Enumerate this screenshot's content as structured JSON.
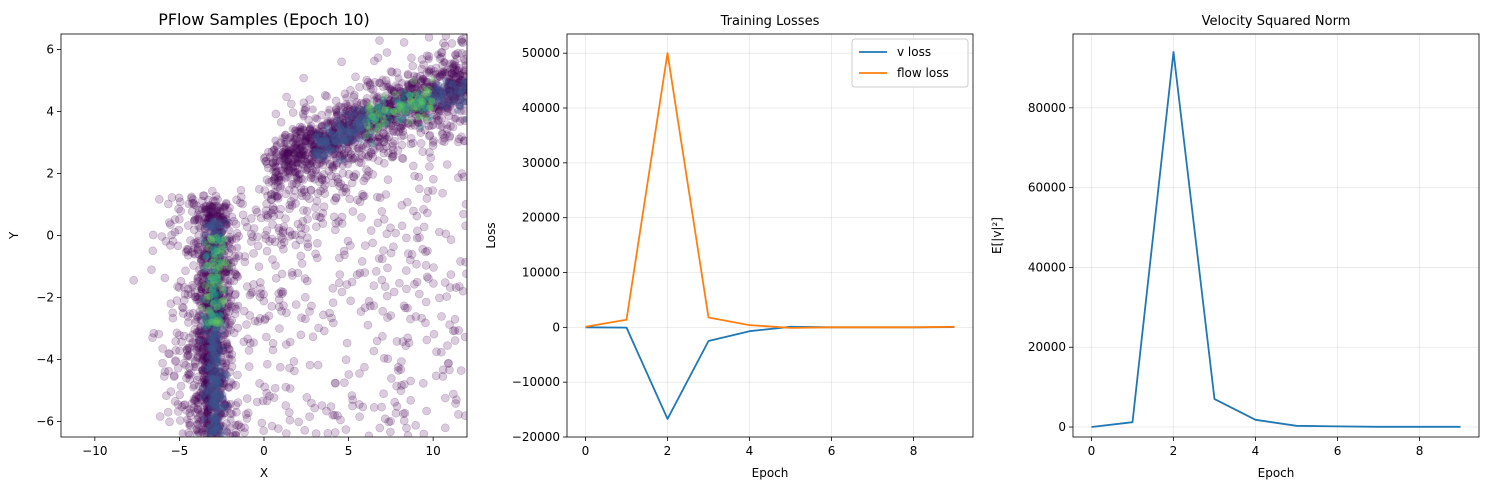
{
  "chart_data": [
    {
      "type": "scatter",
      "title": "PFlow Samples (Epoch 10)",
      "xlabel": "X",
      "ylabel": "Y",
      "xlim": [
        -12,
        12
      ],
      "ylim": [
        -6.5,
        6.5
      ],
      "xticks": [
        -10,
        -5,
        0,
        5,
        10
      ],
      "yticks": [
        -6,
        -4,
        -2,
        0,
        2,
        4,
        6
      ],
      "grid": false,
      "point_color": "#440154",
      "density_colors": [
        "#3b528b",
        "#21918c",
        "#5ec962"
      ],
      "sample_summary": "dense point cloud: a vertical band near x≈-3 (y -6.5 to 1.5) curving into a diagonal band rising from (0, 1.5) to (12, 5)"
    },
    {
      "type": "line",
      "title": "Training Losses",
      "xlabel": "Epoch",
      "ylabel": "Loss",
      "xlim": [
        -0.45,
        9.45
      ],
      "ylim": [
        -20000,
        53500
      ],
      "xticks": [
        0,
        2,
        4,
        6,
        8
      ],
      "yticks": [
        -20000,
        -10000,
        0,
        10000,
        20000,
        30000,
        40000,
        50000
      ],
      "grid": true,
      "legend": "top-right",
      "x": [
        0,
        1,
        2,
        3,
        4,
        5,
        6,
        7,
        8,
        9
      ],
      "series": [
        {
          "name": "v loss",
          "color": "#1f77b4",
          "values": [
            0,
            -50,
            -16700,
            -2500,
            -700,
            100,
            0,
            0,
            0,
            50
          ]
        },
        {
          "name": "flow loss",
          "color": "#ff7f0e",
          "values": [
            100,
            1400,
            50000,
            1800,
            400,
            -100,
            0,
            0,
            0,
            100
          ]
        }
      ]
    },
    {
      "type": "line",
      "title": "Velocity Squared Norm",
      "xlabel": "Epoch",
      "ylabel": "E[|v|²]",
      "xlim": [
        -0.45,
        9.45
      ],
      "ylim": [
        -2500,
        98500
      ],
      "xticks": [
        0,
        2,
        4,
        6,
        8
      ],
      "yticks": [
        0,
        20000,
        40000,
        60000,
        80000
      ],
      "grid": true,
      "x": [
        0,
        1,
        2,
        3,
        4,
        5,
        6,
        7,
        8,
        9
      ],
      "series": [
        {
          "color": "#1f77b4",
          "values": [
            0,
            1200,
            94000,
            7000,
            1800,
            300,
            150,
            50,
            50,
            50
          ]
        }
      ]
    }
  ]
}
